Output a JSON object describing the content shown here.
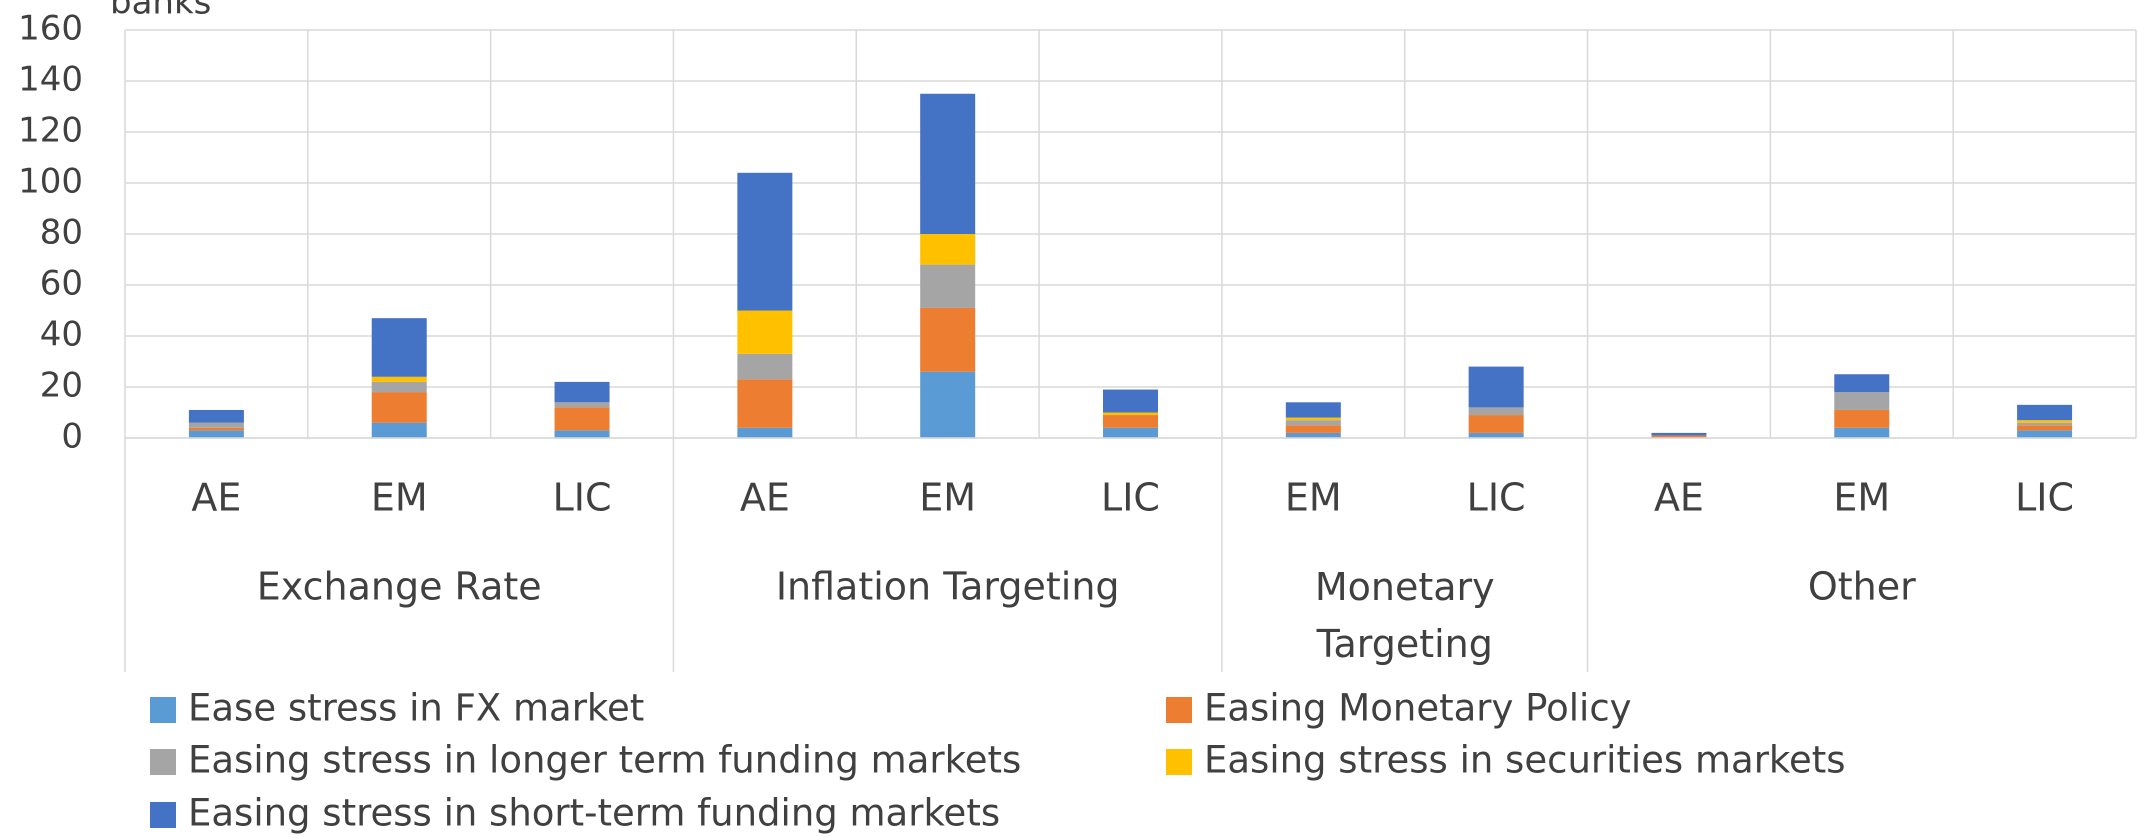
{
  "chart_data": {
    "type": "stacked_bar",
    "y_label": "banks",
    "categories": [
      "AE",
      "EM",
      "LIC",
      "AE",
      "EM",
      "LIC",
      "EM",
      "LIC",
      "AE",
      "EM",
      "LIC"
    ],
    "groups": [
      {
        "name": "Exchange Rate",
        "size": 3
      },
      {
        "name": "Inflation Targeting",
        "size": 3
      },
      {
        "name": "Monetary Targeting",
        "size": 2
      },
      {
        "name": "Other",
        "size": 3
      }
    ],
    "series": [
      {
        "name": "Ease stress in FX market",
        "color": "#5b9bd5",
        "values": [
          3,
          6,
          3,
          4,
          26,
          4,
          2,
          2,
          0,
          4,
          3
        ]
      },
      {
        "name": "Easing Monetary Policy",
        "color": "#ed7d31",
        "values": [
          1,
          12,
          9,
          19,
          25,
          5,
          3,
          7,
          1,
          7,
          2
        ]
      },
      {
        "name": "Easing stress in longer term funding markets",
        "color": "#a5a5a5",
        "values": [
          2,
          4,
          2,
          10,
          17,
          0,
          2,
          3,
          0,
          7,
          1
        ]
      },
      {
        "name": "Easing stress in securities markets",
        "color": "#ffc000",
        "values": [
          0,
          2,
          0,
          17,
          12,
          1,
          1,
          0,
          0,
          0,
          1
        ]
      },
      {
        "name": "Easing stress in short-term funding markets",
        "color": "#4472c4",
        "values": [
          5,
          23,
          8,
          54,
          55,
          9,
          6,
          16,
          1,
          7,
          6
        ]
      }
    ],
    "ylim": [
      0,
      160
    ],
    "yticks": [
      0,
      20,
      40,
      60,
      80,
      100,
      120,
      140,
      160
    ],
    "grid": true
  }
}
